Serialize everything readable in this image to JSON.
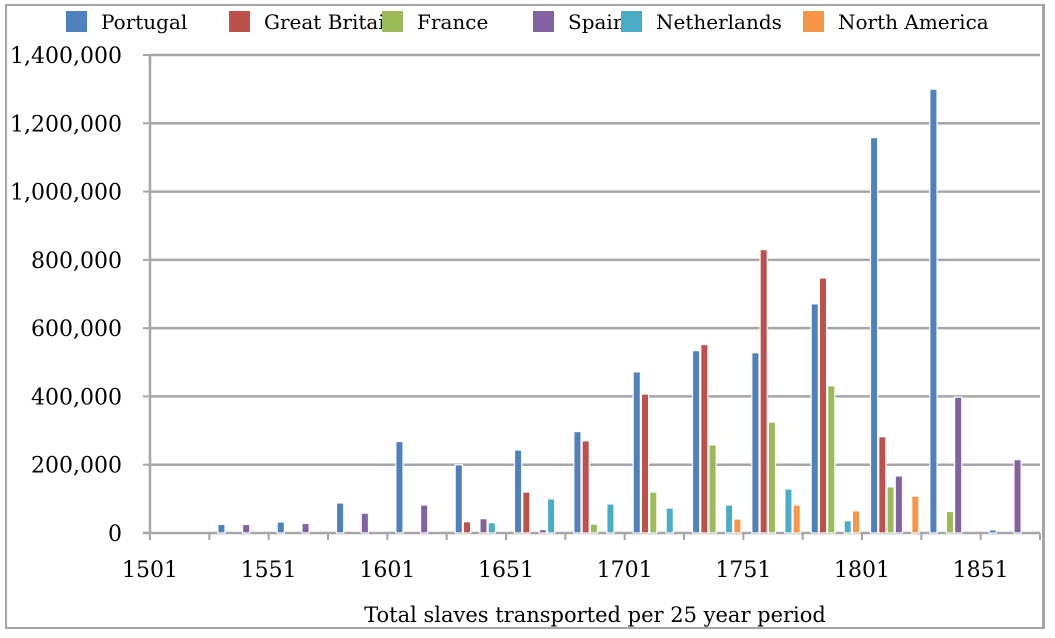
{
  "chart_data": {
    "type": "bar",
    "title": "",
    "xlabel": "Total slaves transported per 25 year period",
    "ylabel": "",
    "ylim": [
      0,
      1400000
    ],
    "yticks": [
      "0",
      "200,000",
      "400,000",
      "600,000",
      "800,000",
      "1,000,000",
      "1,200,000",
      "1,400,000"
    ],
    "ytick_values": [
      0,
      200000,
      400000,
      600000,
      800000,
      1000000,
      1200000,
      1400000
    ],
    "categories": [
      "1501",
      "1526",
      "1551",
      "1576",
      "1601",
      "1626",
      "1651",
      "1676",
      "1701",
      "1726",
      "1751",
      "1776",
      "1801",
      "1826",
      "1851"
    ],
    "xtick_labels": [
      "1501",
      "1551",
      "1601",
      "1651",
      "1701",
      "1751",
      "1801",
      "1851"
    ],
    "grid": true,
    "legend_position": "top",
    "series": [
      {
        "name": "Portugal",
        "color": "#4f81bd",
        "values": [
          0,
          25000,
          32000,
          88000,
          268000,
          200000,
          243000,
          297000,
          472000,
          534000,
          528000,
          671000,
          1158000,
          1300000,
          9000
        ]
      },
      {
        "name": "Great Britain",
        "color": "#c0504d",
        "values": [
          0,
          0,
          0,
          0,
          0,
          33000,
          120000,
          270000,
          407000,
          552000,
          830000,
          747000,
          282000,
          0,
          0
        ]
      },
      {
        "name": "France",
        "color": "#9bbb59",
        "values": [
          0,
          0,
          0,
          0,
          0,
          0,
          0,
          26000,
          120000,
          258000,
          325000,
          431000,
          135000,
          63000,
          0
        ]
      },
      {
        "name": "Spain",
        "color": "#8064a2",
        "values": [
          0,
          25000,
          28000,
          58000,
          82000,
          42000,
          10000,
          0,
          0,
          0,
          0,
          0,
          167000,
          398000,
          215000
        ]
      },
      {
        "name": "Netherlands",
        "color": "#4bacc6",
        "values": [
          0,
          0,
          0,
          0,
          0,
          30000,
          100000,
          85000,
          73000,
          82000,
          129000,
          36000,
          0,
          0,
          0
        ]
      },
      {
        "name": "North America",
        "color": "#f79646",
        "values": [
          0,
          0,
          0,
          0,
          0,
          0,
          0,
          0,
          0,
          41000,
          82000,
          65000,
          108000,
          0,
          0
        ]
      }
    ]
  }
}
